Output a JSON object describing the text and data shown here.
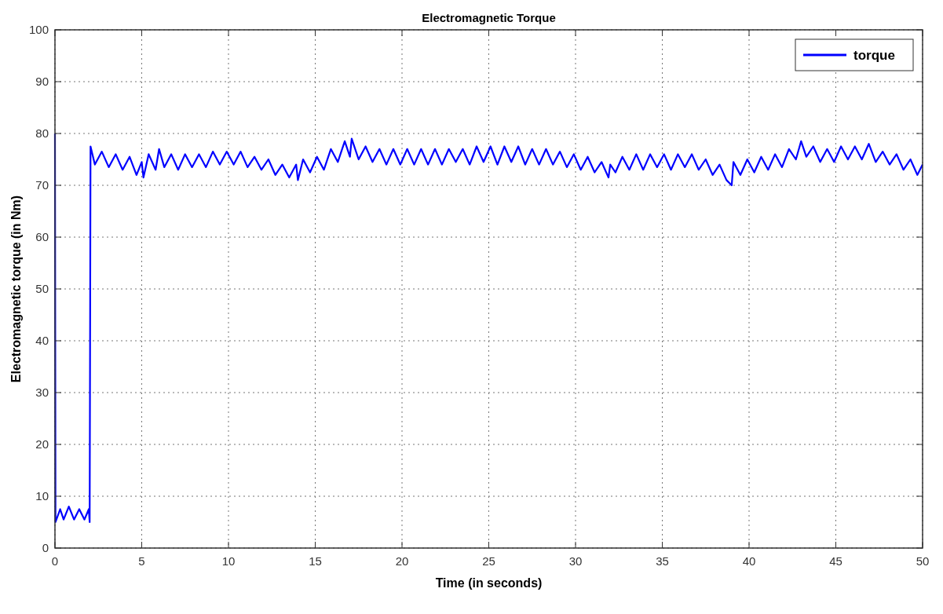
{
  "chart_data": {
    "type": "line",
    "title": "Electromagnetic Torque",
    "xlabel": "Time (in seconds)",
    "ylabel": "Electromagnetic torque (in Nm)",
    "xlim": [
      0,
      50
    ],
    "xticks": [
      0,
      5,
      10,
      15,
      20,
      25,
      30,
      35,
      40,
      45,
      50
    ],
    "ylim": [
      0,
      100
    ],
    "yticks": [
      0,
      10,
      20,
      30,
      40,
      50,
      60,
      70,
      80,
      90,
      100
    ],
    "grid": true,
    "legend": "top right",
    "line_style": "solid",
    "marker": "none",
    "series": [
      {
        "name": "torque",
        "color": "#0000ff",
        "x": [
          0,
          0.03,
          0.3,
          0.5,
          0.8,
          1.1,
          1.4,
          1.7,
          1.95,
          2.0,
          2.05,
          2.3,
          2.7,
          3.1,
          3.5,
          3.9,
          4.3,
          4.7,
          5.0,
          5.1,
          5.4,
          5.8,
          6.0,
          6.3,
          6.7,
          7.1,
          7.5,
          7.9,
          8.3,
          8.7,
          9.1,
          9.5,
          9.9,
          10.3,
          10.7,
          11.1,
          11.5,
          11.9,
          12.3,
          12.7,
          13.1,
          13.5,
          13.9,
          14.0,
          14.3,
          14.7,
          15.1,
          15.5,
          15.9,
          16.3,
          16.7,
          17.0,
          17.1,
          17.5,
          17.9,
          18.3,
          18.7,
          19.1,
          19.5,
          19.9,
          20.3,
          20.7,
          21.1,
          21.5,
          21.9,
          22.3,
          22.7,
          23.1,
          23.5,
          23.9,
          24.3,
          24.7,
          25.1,
          25.5,
          25.9,
          26.3,
          26.7,
          27.1,
          27.5,
          27.9,
          28.3,
          28.7,
          29.1,
          29.5,
          29.9,
          30.3,
          30.7,
          31.1,
          31.5,
          31.9,
          32.0,
          32.3,
          32.7,
          33.1,
          33.5,
          33.9,
          34.3,
          34.7,
          35.1,
          35.5,
          35.9,
          36.3,
          36.7,
          37.1,
          37.5,
          37.9,
          38.3,
          38.7,
          39.0,
          39.1,
          39.5,
          39.9,
          40.3,
          40.7,
          41.1,
          41.5,
          41.9,
          42.3,
          42.7,
          43.0,
          43.3,
          43.7,
          44.1,
          44.5,
          44.9,
          45.3,
          45.7,
          46.1,
          46.5,
          46.9,
          47.3,
          47.7,
          48.1,
          48.5,
          48.9,
          49.3,
          49.7,
          50
        ],
        "values": [
          80,
          5,
          7.5,
          5.5,
          8,
          5.5,
          7.5,
          5.5,
          7.5,
          5,
          77.5,
          74,
          76.5,
          73.5,
          76,
          73,
          75.5,
          72,
          74.5,
          71.5,
          76,
          73,
          77,
          73.5,
          76,
          73,
          76,
          73.5,
          76,
          73.5,
          76.5,
          74,
          76.5,
          74,
          76.5,
          73.5,
          75.5,
          73,
          75,
          72,
          74,
          71.5,
          74,
          71,
          75,
          72.5,
          75.5,
          73,
          77,
          74.5,
          78.5,
          75.5,
          79,
          75,
          77.5,
          74.5,
          77,
          74,
          77,
          74,
          77,
          74,
          77,
          74,
          77,
          74,
          77,
          74.5,
          77,
          74,
          77.5,
          74.5,
          77.5,
          74,
          77.5,
          74.5,
          77.5,
          74,
          77,
          74,
          77,
          74,
          76.5,
          73.5,
          76,
          73,
          75.5,
          72.5,
          74.5,
          71.5,
          74,
          72.5,
          75.5,
          73,
          76,
          73,
          76,
          73.5,
          76,
          73,
          76,
          73.5,
          76,
          73,
          75,
          72,
          74,
          71,
          70,
          74.5,
          72,
          75,
          72.5,
          75.5,
          73,
          76,
          73.5,
          77,
          75,
          78.5,
          75.5,
          77.5,
          74.5,
          77,
          74.5,
          77.5,
          75,
          77.5,
          75,
          78,
          74.5,
          76.5,
          74,
          76,
          73,
          75,
          72,
          74
        ]
      }
    ]
  }
}
